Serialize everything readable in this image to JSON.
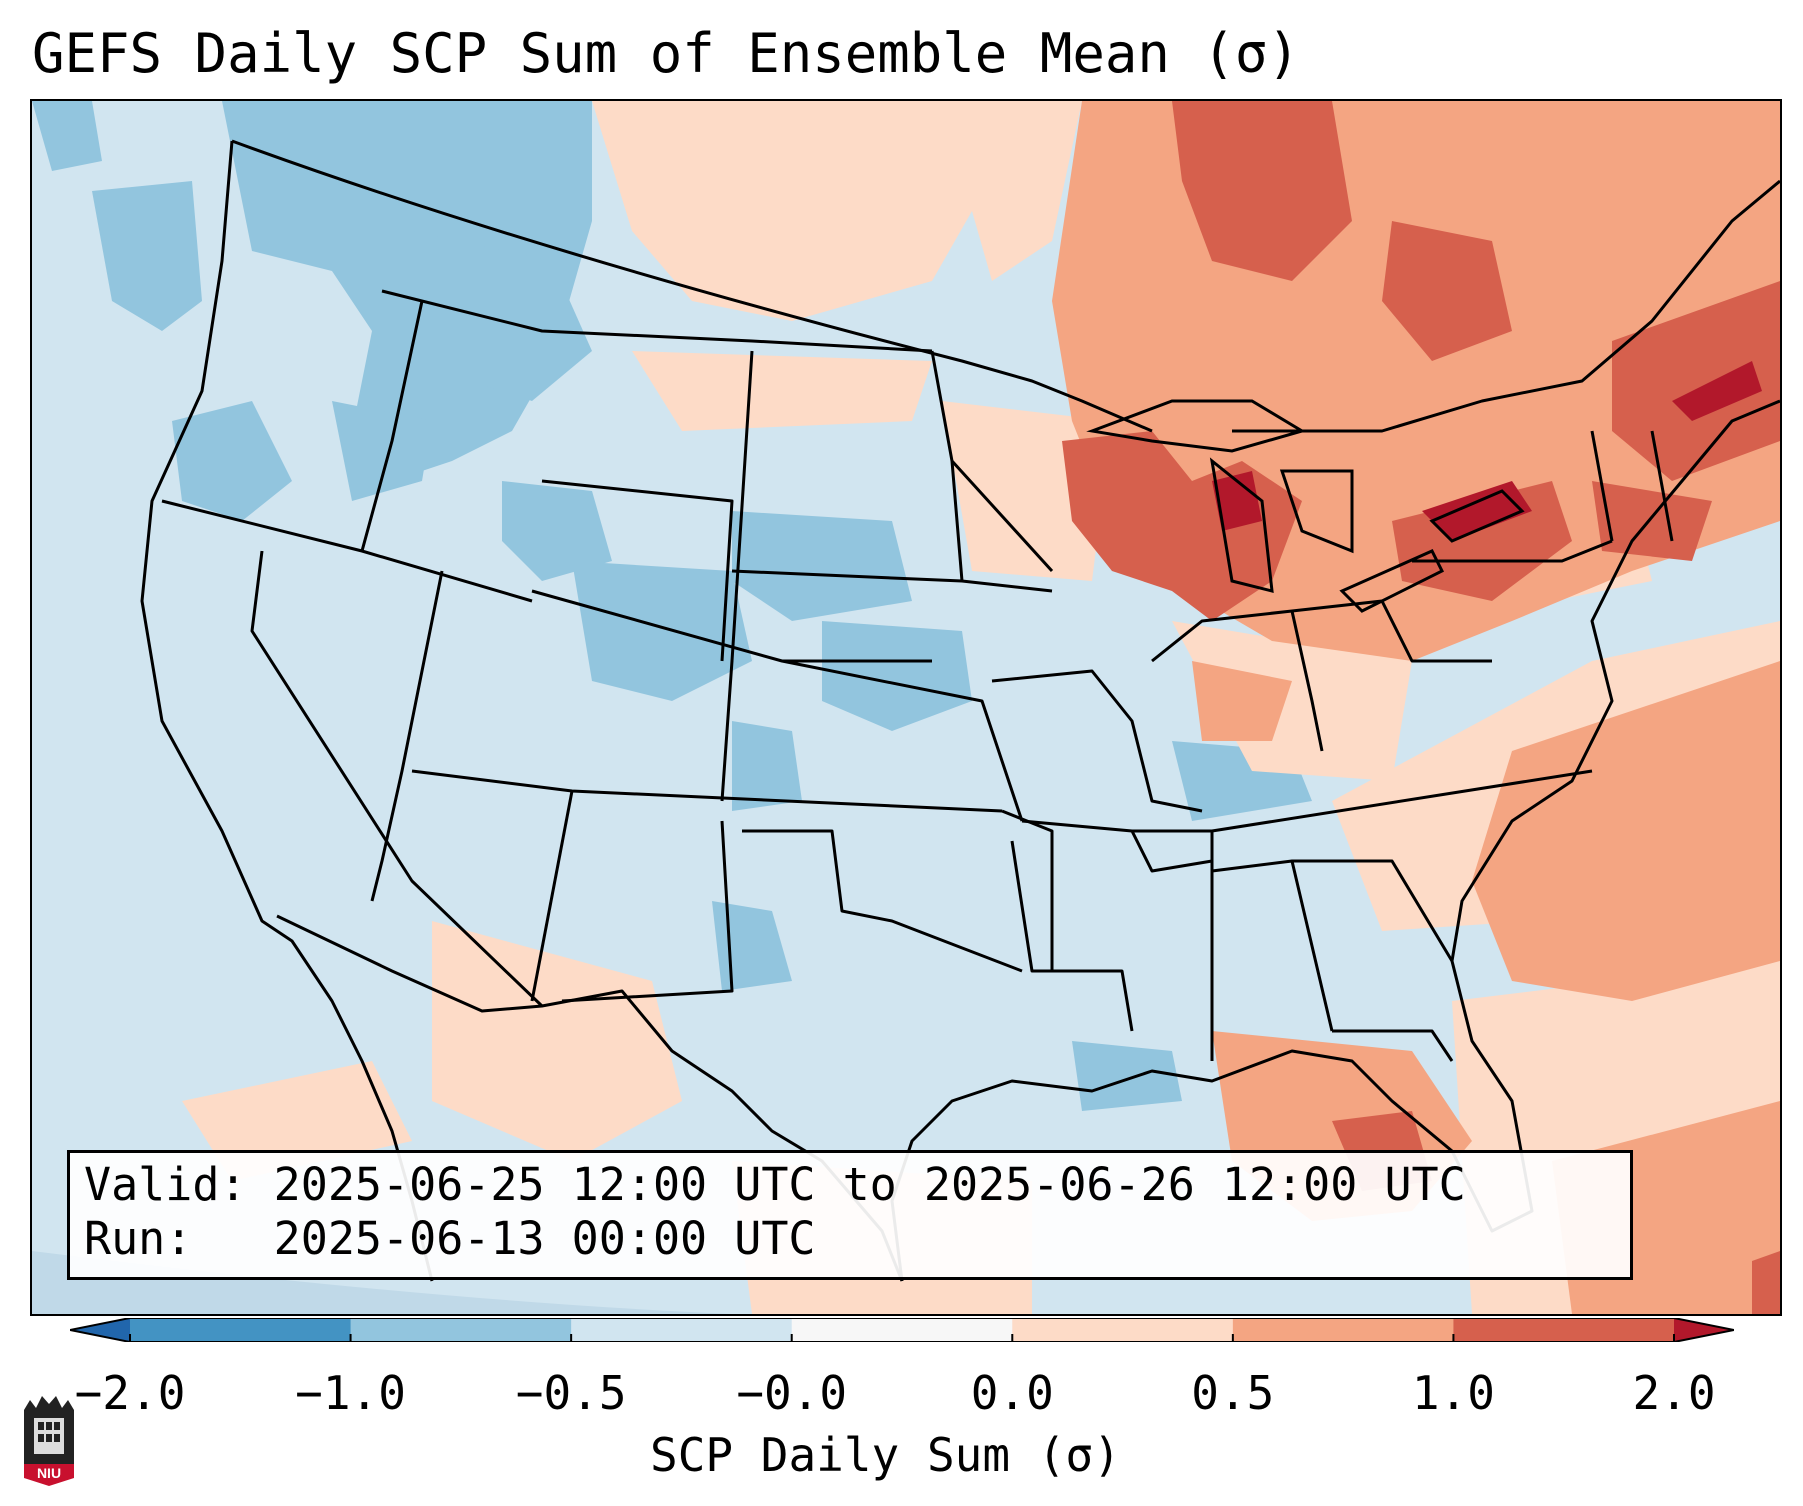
{
  "title": "GEFS Daily SCP Sum of Ensemble Mean (σ)",
  "info": {
    "valid_label": "Valid:",
    "valid_value": "2025-06-25 12:00 UTC to 2025-06-26 12:00 UTC",
    "run_label": "Run:",
    "run_value": "2025-06-13 00:00 UTC"
  },
  "colorbar": {
    "label": "SCP Daily Sum (σ)",
    "ticks": [
      "−2.0",
      "−1.0",
      "−0.5",
      "−0.0",
      "0.0",
      "0.5",
      "1.0",
      "2.0"
    ],
    "bin_colors": [
      "#4393c3",
      "#92c5de",
      "#d1e5f0",
      "#f7f7f7",
      "#fddbc7",
      "#f4a582",
      "#d6604d"
    ],
    "under_color": "#2166ac",
    "over_color": "#b2182b"
  },
  "logo": {
    "text": "NIU"
  },
  "map": {
    "background_color": "#d1e5f0",
    "outside_domain_color": "#c0d9e8",
    "region_colors": {
      "neutral": "#d1e5f0",
      "weak_low": "#92c5de",
      "weak_high": "#fddbc7",
      "moderate_high": "#f4a582",
      "strong_high": "#d6604d",
      "extreme_high": "#b2182b"
    }
  }
}
